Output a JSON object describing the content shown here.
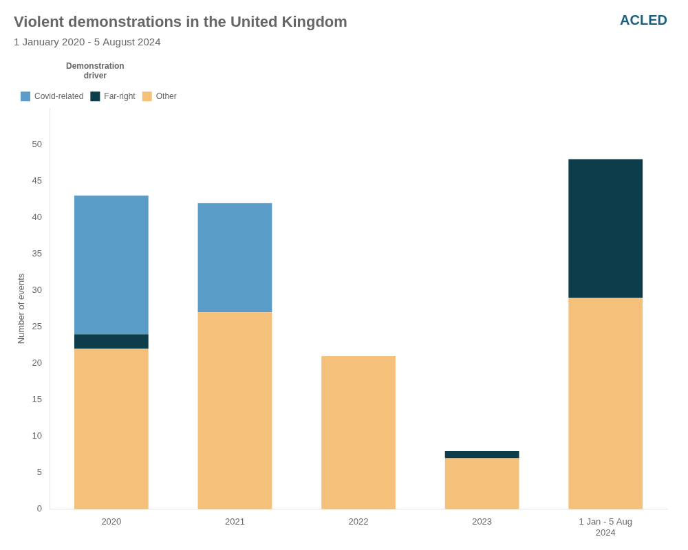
{
  "chart_data": {
    "type": "bar",
    "title": "Violent demonstrations in the United Kingdom",
    "subtitle": "1 January 2020 - 5 August 2024",
    "ylabel": "Number of events",
    "annotations": [
      "ACLED"
    ],
    "legend_title": "Demonstration\ndriver",
    "categories": [
      "2020",
      "2021",
      "2022",
      "2023",
      "1 Jan - 5 Aug\n2024"
    ],
    "series": [
      {
        "name": "Other",
        "color": "#f5c07a",
        "values": [
          22,
          27,
          21,
          7,
          29
        ]
      },
      {
        "name": "Far-right",
        "color": "#0d3d4a",
        "values": [
          2,
          0,
          0,
          1,
          19
        ]
      },
      {
        "name": "Covid-related",
        "color": "#5b9dc9",
        "values": [
          19,
          15,
          0,
          0,
          0
        ]
      }
    ],
    "stacked": true,
    "ylim": [
      0,
      55
    ],
    "yticks": [
      0,
      5,
      10,
      15,
      20,
      25,
      30,
      35,
      40,
      45,
      50
    ],
    "grid": false,
    "legend": "upper left"
  }
}
